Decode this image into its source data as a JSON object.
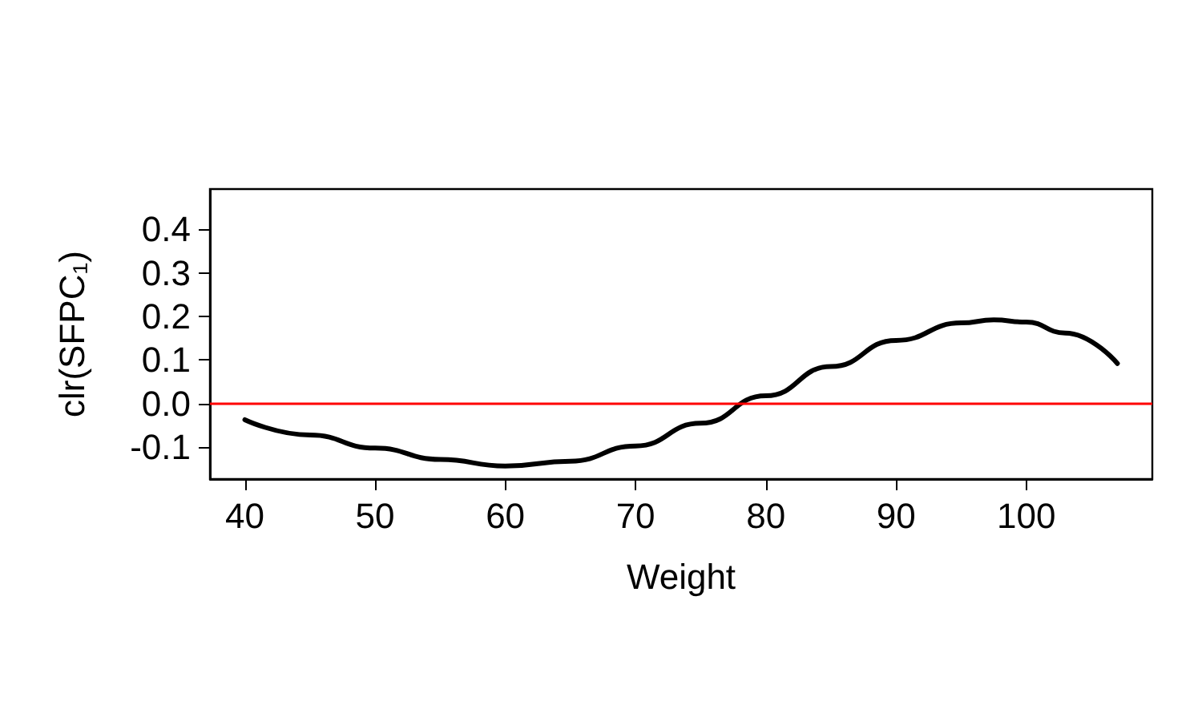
{
  "chart_data": {
    "type": "line",
    "xlabel": "Weight",
    "ylabel": "clr(SFPC₁)",
    "x": [
      40,
      45,
      50,
      55,
      60,
      65,
      70,
      75,
      80,
      85,
      90,
      95,
      97.5,
      100,
      103,
      107
    ],
    "series": [
      {
        "color": "#000000",
        "values": [
          -0.037,
          -0.072,
          -0.102,
          -0.128,
          -0.143,
          -0.132,
          -0.097,
          -0.045,
          0.018,
          0.085,
          0.145,
          0.185,
          0.192,
          0.187,
          0.162,
          0.092
        ]
      }
    ],
    "xlim": [
      37.32,
      109.68
    ],
    "ylim": [
      -0.173,
      0.492
    ],
    "xticks": [
      40,
      50,
      60,
      70,
      80,
      90,
      100
    ],
    "yticks": [
      {
        "value": -0.1,
        "label": "-0.1"
      },
      {
        "value": 0,
        "label": "0.0"
      },
      0.1,
      0.2,
      0.3,
      0.4
    ],
    "ref_lines": [
      {
        "axis": "y",
        "value": 0,
        "color": "#ff0000"
      }
    ],
    "grid": false,
    "marker": "none",
    "line_style": "solid"
  }
}
